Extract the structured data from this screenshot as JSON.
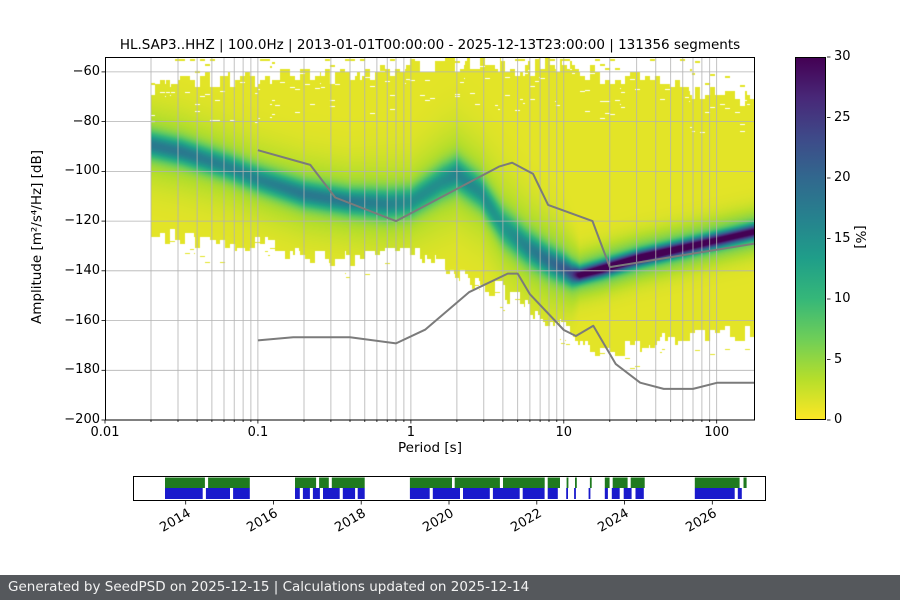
{
  "title": "HL.SAP3..HHZ | 100.0Hz | 2013-01-01T00:00:00 - 2025-12-13T23:00:00 | 131356 segments",
  "footer": "Generated by SeedPSD on 2025-12-15 | Calculations updated on 2025-12-14",
  "axes": {
    "xlabel": "Period [s]",
    "ylabel": "Amplitude [m²/s⁴/Hz] [dB]",
    "xlim": [
      0.01,
      178
    ],
    "ylim": [
      -200,
      -54
    ],
    "x_ticks": [
      {
        "value": 0.01,
        "label": "0.01"
      },
      {
        "value": 0.1,
        "label": "0.1"
      },
      {
        "value": 1,
        "label": "1"
      },
      {
        "value": 10,
        "label": "10"
      },
      {
        "value": 100,
        "label": "100"
      }
    ],
    "y_ticks": [
      {
        "value": -60,
        "label": "−60"
      },
      {
        "value": -80,
        "label": "−80"
      },
      {
        "value": -100,
        "label": "−100"
      },
      {
        "value": -120,
        "label": "−120"
      },
      {
        "value": -140,
        "label": "−140"
      },
      {
        "value": -160,
        "label": "−160"
      },
      {
        "value": -180,
        "label": "−180"
      },
      {
        "value": -200,
        "label": "−200"
      }
    ]
  },
  "colorbar": {
    "label": "[%]",
    "min": 0,
    "max": 30,
    "ticks": [
      {
        "value": 0,
        "label": "0"
      },
      {
        "value": 5,
        "label": "5"
      },
      {
        "value": 10,
        "label": "10"
      },
      {
        "value": 15,
        "label": "15"
      },
      {
        "value": 20,
        "label": "20"
      },
      {
        "value": 25,
        "label": "25"
      },
      {
        "value": 30,
        "label": "30"
      }
    ],
    "viridis": [
      "#440154",
      "#482878",
      "#3e4a89",
      "#31688e",
      "#26828e",
      "#1f9e89",
      "#35b779",
      "#6ece58",
      "#b5de2b",
      "#fde725"
    ]
  },
  "chart_data": {
    "type": "heatmap",
    "title": "HL.SAP3..HHZ | 100.0Hz | 2013-01-01T00:00:00 - 2025-12-13T23:00:00 | 131356 segments",
    "xlabel": "Period [s]",
    "ylabel": "Amplitude [m²/s⁴/Hz] [dB]",
    "xscale": "log",
    "xlim": [
      0.01,
      178
    ],
    "ylim": [
      -200,
      -54
    ],
    "colorbar_label": "[%]",
    "colorbar_range": [
      0,
      30
    ],
    "grid": true,
    "ppsd": {
      "min_period": 0.0197,
      "logp": [
        -1.72,
        -1.5,
        -1.2,
        -1.0,
        -0.7,
        -0.4,
        -0.15,
        0.0,
        0.2,
        0.3,
        0.45,
        0.6,
        0.75,
        0.9,
        1.0,
        1.05,
        1.1,
        1.25,
        1.5,
        1.75,
        2.0,
        2.25
      ],
      "mode_db": [
        -89,
        -92,
        -98,
        -103,
        -109,
        -112,
        -113,
        -112,
        -104,
        -101,
        -108,
        -122,
        -130,
        -136,
        -139,
        -141,
        -141.5,
        -139,
        -134.5,
        -131,
        -127.5,
        -124
      ],
      "peak_pct": [
        13,
        13,
        12,
        12,
        13,
        13,
        12,
        11,
        11,
        12,
        11,
        10,
        12,
        14,
        16,
        18,
        24,
        26,
        26,
        25,
        24,
        24
      ],
      "sigma_db": [
        3.5,
        3.5,
        3.5,
        3.5,
        3.5,
        3.5,
        4,
        4,
        4.5,
        4.5,
        4.5,
        5,
        4.5,
        4,
        3.5,
        3,
        2,
        2,
        2,
        2,
        2,
        2
      ],
      "top_db": [
        -66,
        -63,
        -63,
        -62,
        -60,
        -62,
        -59,
        -58,
        -57,
        -57,
        -56,
        -58,
        -59,
        -57,
        -58,
        -59,
        -60,
        -61,
        -63,
        -66,
        -69,
        -71
      ],
      "bottom_db": [
        -124,
        -127,
        -131,
        -128,
        -133,
        -136,
        -133,
        -131,
        -136,
        -140,
        -146,
        -148,
        -153,
        -160,
        -164,
        -166,
        -168,
        -173,
        -171,
        -167,
        -165,
        -166
      ]
    },
    "noise_models": {
      "color": "#7b7b7b",
      "nhnm": {
        "periods": [
          0.1,
          0.22,
          0.32,
          0.8,
          3.8,
          4.6,
          6.3,
          7.9,
          15.4,
          20,
          178
        ],
        "db": [
          -91.5,
          -97.4,
          -110.5,
          -120,
          -98,
          -96.5,
          -101,
          -113.5,
          -120,
          -138.5,
          -129
        ]
      },
      "nlnm": {
        "periods": [
          0.1,
          0.17,
          0.4,
          0.8,
          1.24,
          2.4,
          4.3,
          5,
          6,
          10,
          12,
          15.6,
          21.9,
          31.6,
          45,
          70,
          101,
          154,
          178
        ],
        "db": [
          -168,
          -166.7,
          -166.7,
          -169.2,
          -163.7,
          -148.6,
          -141.1,
          -141.1,
          -149.4,
          -163.8,
          -166.2,
          -162.1,
          -177.5,
          -185,
          -187.5,
          -187.5,
          -185,
          -185,
          -185
        ]
      }
    },
    "timeline": {
      "year_start": 2012.8,
      "year_end": 2027.2,
      "tick_years": [
        2014,
        2016,
        2018,
        2020,
        2022,
        2024,
        2026
      ],
      "green_color": "#1f7a1f",
      "blue_color": "#1a1acc",
      "green_segments": [
        [
          2013.53,
          2014.44
        ],
        [
          2014.51,
          2015.46
        ],
        [
          2016.49,
          2016.97
        ],
        [
          2017.04,
          2017.26
        ],
        [
          2017.33,
          2018.08
        ],
        [
          2019.11,
          2020.07
        ],
        [
          2020.13,
          2021.16
        ],
        [
          2021.23,
          2022.18
        ],
        [
          2022.25,
          2022.53
        ],
        [
          2022.68,
          2022.72
        ],
        [
          2022.87,
          2022.91
        ],
        [
          2023.21,
          2023.25
        ],
        [
          2023.55,
          2023.66
        ],
        [
          2023.73,
          2024.07
        ],
        [
          2024.14,
          2024.46
        ],
        [
          2025.6,
          2026.62
        ],
        [
          2026.71,
          2026.78
        ]
      ],
      "blue_segments": [
        [
          2013.53,
          2014.39
        ],
        [
          2014.46,
          2015.01
        ],
        [
          2015.08,
          2015.46
        ],
        [
          2016.49,
          2016.6
        ],
        [
          2016.67,
          2016.83
        ],
        [
          2016.9,
          2017.06
        ],
        [
          2017.13,
          2017.51
        ],
        [
          2017.58,
          2017.86
        ],
        [
          2017.92,
          2018.08
        ],
        [
          2019.11,
          2019.56
        ],
        [
          2019.63,
          2020.25
        ],
        [
          2020.32,
          2020.93
        ],
        [
          2021.0,
          2021.61
        ],
        [
          2021.68,
          2022.18
        ],
        [
          2022.25,
          2022.48
        ],
        [
          2022.67,
          2022.71
        ],
        [
          2022.85,
          2022.89
        ],
        [
          2023.18,
          2023.22
        ],
        [
          2023.55,
          2023.62
        ],
        [
          2023.71,
          2023.89
        ],
        [
          2023.98,
          2024.16
        ],
        [
          2024.25,
          2024.44
        ],
        [
          2025.6,
          2026.51
        ],
        [
          2026.58,
          2026.67
        ]
      ]
    }
  }
}
